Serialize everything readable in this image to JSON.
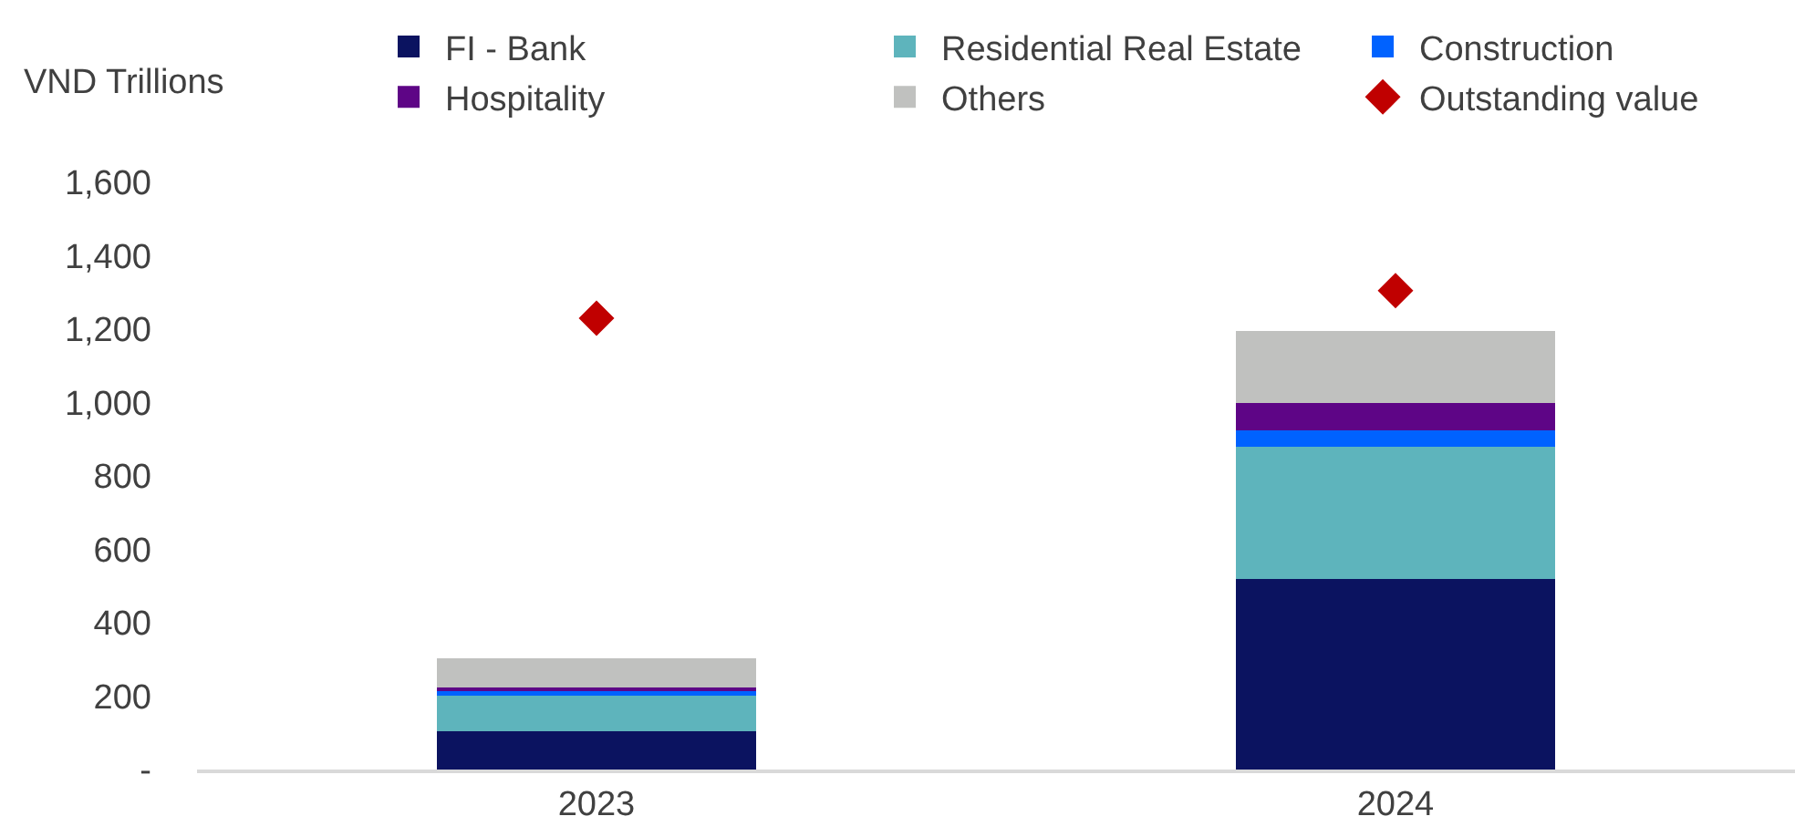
{
  "chart_data": {
    "type": "bar",
    "stacked": true,
    "ylabel": "VND Trillions",
    "categories": [
      "2023",
      "2024"
    ],
    "series": [
      {
        "name": "FI - Bank",
        "color": "#0b1360",
        "values": [
          105,
          520
        ]
      },
      {
        "name": "Residential Real Estate",
        "color": "#5eb4bc",
        "values": [
          97,
          360
        ]
      },
      {
        "name": "Construction",
        "color": "#0062ff",
        "values": [
          12,
          45
        ]
      },
      {
        "name": "Hospitality",
        "color": "#5e0586",
        "values": [
          10,
          75
        ]
      },
      {
        "name": "Others",
        "color": "#c0c1bf",
        "values": [
          80,
          195
        ]
      },
      {
        "name": "Outstanding value",
        "type": "scatter",
        "marker": "diamond",
        "color": "#c00000",
        "values": [
          1230,
          1305
        ]
      }
    ],
    "ylim": [
      0,
      1600
    ],
    "yticks": [
      {
        "value": 0,
        "label": "-"
      },
      200,
      400,
      600,
      800,
      {
        "value": 1000,
        "label": "1,000"
      },
      {
        "value": 1200,
        "label": "1,200"
      },
      {
        "value": 1400,
        "label": "1,400"
      },
      {
        "value": 1600,
        "label": "1,600"
      }
    ],
    "legend": "top"
  }
}
